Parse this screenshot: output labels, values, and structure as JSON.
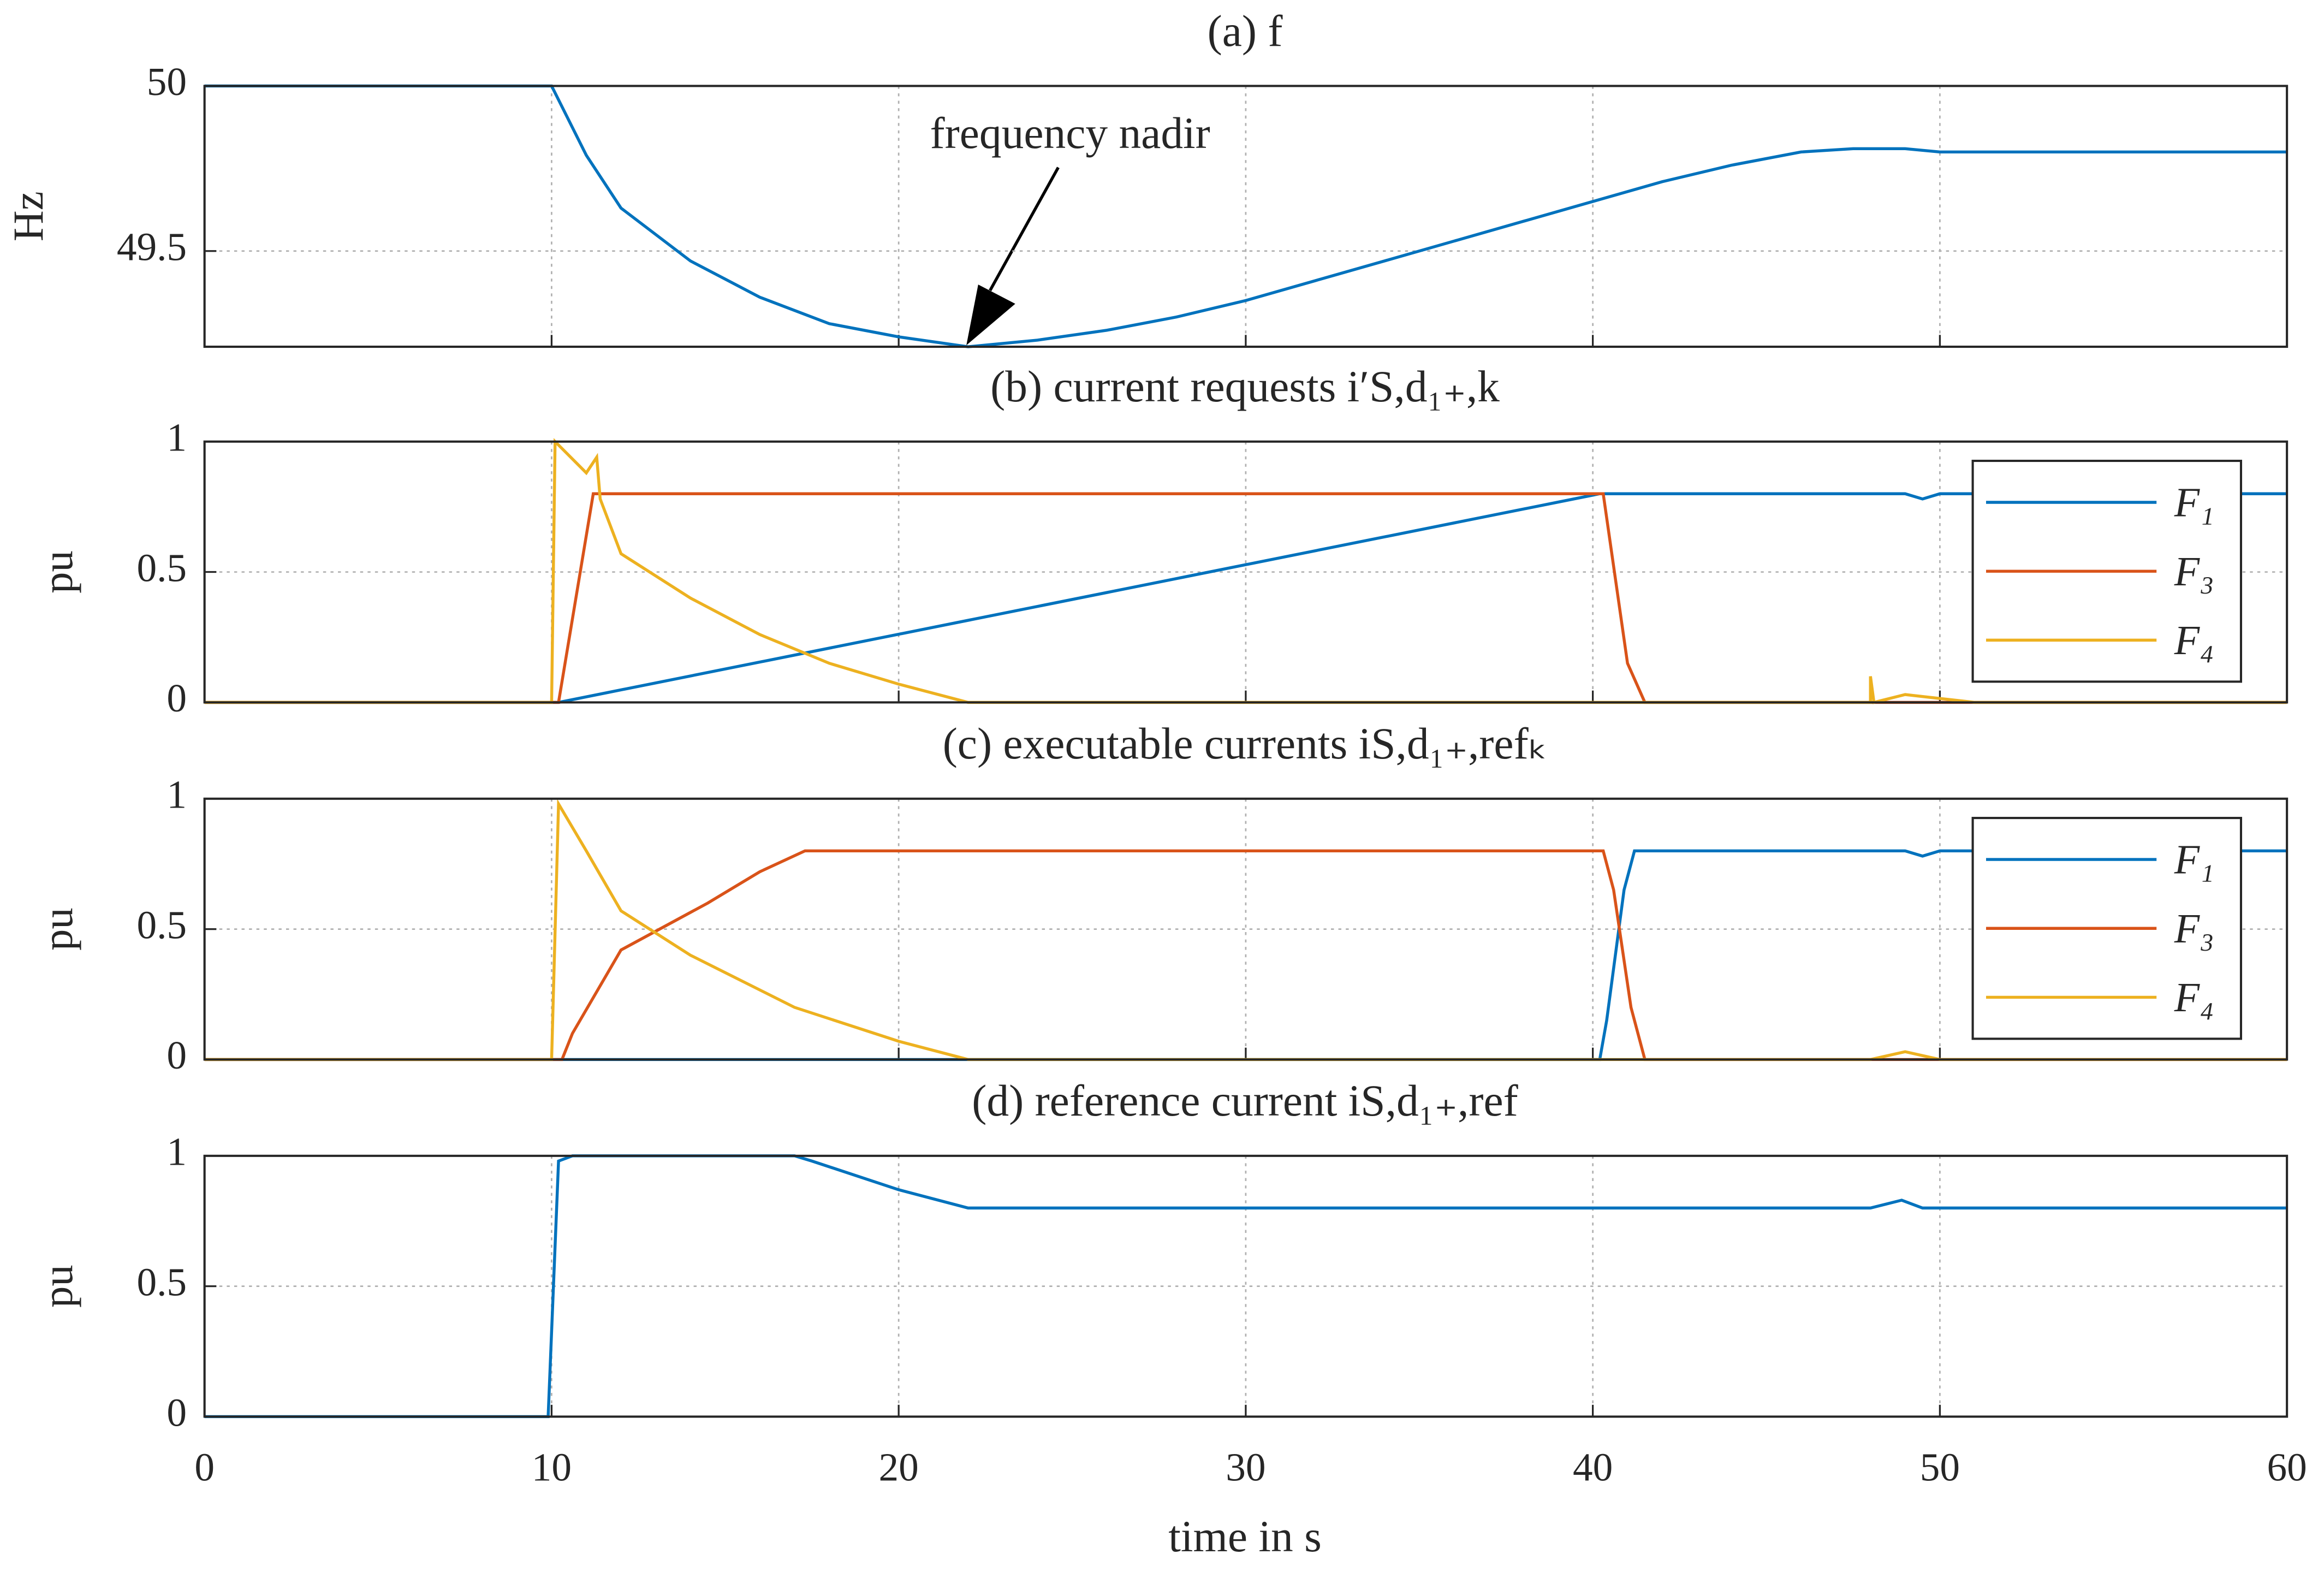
{
  "chart_data": [
    {
      "type": "line",
      "title": "(a) f",
      "ylabel": "Hz",
      "ylim": [
        49.21,
        50
      ],
      "yticks": [
        49.5,
        50
      ],
      "grid": true,
      "annotation": "frequency nadir",
      "series": [
        {
          "name": "f",
          "color": "#0072BD",
          "x": [
            0,
            10,
            11,
            12,
            14,
            16,
            18,
            20,
            22,
            24,
            26,
            28,
            30,
            32,
            34,
            36,
            38,
            40,
            42,
            44,
            46,
            47.5,
            49,
            50,
            60
          ],
          "values": [
            50,
            50,
            49.79,
            49.63,
            49.47,
            49.36,
            49.28,
            49.24,
            49.21,
            49.23,
            49.26,
            49.3,
            49.35,
            49.41,
            49.47,
            49.53,
            49.59,
            49.65,
            49.71,
            49.76,
            49.8,
            49.81,
            49.81,
            49.8,
            49.8
          ]
        }
      ]
    },
    {
      "type": "line",
      "title": "(b) current requests i′S,d₁₊,k",
      "ylabel": "pu",
      "ylim": [
        0,
        1
      ],
      "yticks": [
        0,
        0.5,
        1
      ],
      "grid": true,
      "legend": "upper right",
      "series": [
        {
          "name": "F₁",
          "color": "#0072BD",
          "x": [
            0,
            10.2,
            40.2,
            49,
            49.5,
            50,
            60
          ],
          "values": [
            0,
            0,
            0.8,
            0.8,
            0.78,
            0.8,
            0.8
          ]
        },
        {
          "name": "F₃",
          "color": "#D95319",
          "x": [
            0,
            10.2,
            11.2,
            40.3,
            41,
            41.5,
            60
          ],
          "values": [
            0,
            0,
            0.8,
            0.8,
            0.15,
            0,
            0
          ]
        },
        {
          "name": "F₄",
          "color": "#EDB120",
          "x": [
            0,
            10,
            10.1,
            11,
            11.3,
            11.4,
            12,
            14,
            16,
            18,
            20,
            22,
            48,
            48,
            48.1,
            49,
            51,
            60
          ],
          "values": [
            0,
            0,
            1,
            0.88,
            0.94,
            0.78,
            0.57,
            0.4,
            0.26,
            0.15,
            0.07,
            0,
            0,
            0.1,
            0,
            0.03,
            0,
            0
          ]
        }
      ]
    },
    {
      "type": "line",
      "title": "(c) executable currents iS,d₁₊,refₖ",
      "ylabel": "pu",
      "ylim": [
        0,
        1
      ],
      "yticks": [
        0,
        0.5,
        1
      ],
      "grid": true,
      "legend": "upper right",
      "series": [
        {
          "name": "F₁",
          "color": "#0072BD",
          "x": [
            0,
            40.2,
            40.4,
            40.9,
            41.2,
            49,
            49.5,
            50,
            60
          ],
          "values": [
            0,
            0,
            0.15,
            0.65,
            0.8,
            0.8,
            0.78,
            0.8,
            0.8
          ]
        },
        {
          "name": "F₃",
          "color": "#D95319",
          "x": [
            0,
            10.3,
            10.6,
            12,
            14.5,
            16,
            17.3,
            40.3,
            40.6,
            41.1,
            41.5,
            60
          ],
          "values": [
            0,
            0,
            0.1,
            0.42,
            0.6,
            0.72,
            0.8,
            0.8,
            0.65,
            0.2,
            0,
            0
          ]
        },
        {
          "name": "F₄",
          "color": "#EDB120",
          "x": [
            0,
            10,
            10.2,
            11,
            12,
            14,
            17,
            20,
            22,
            48,
            49,
            50,
            60
          ],
          "values": [
            0,
            0,
            0.98,
            0.8,
            0.57,
            0.4,
            0.2,
            0.07,
            0,
            0,
            0.03,
            0,
            0
          ]
        }
      ]
    },
    {
      "type": "line",
      "title": "(d) reference current iS,d₁₊,ref",
      "ylabel": "pu",
      "xlabel": "time in s",
      "xlim": [
        0,
        60
      ],
      "xticks": [
        0,
        10,
        20,
        30,
        40,
        50,
        60
      ],
      "ylim": [
        0,
        1
      ],
      "yticks": [
        0,
        0.5,
        1
      ],
      "grid": true,
      "series": [
        {
          "name": "iS,d₁₊,ref",
          "color": "#0072BD",
          "x": [
            0,
            9.9,
            10.2,
            10.6,
            17,
            17.5,
            20,
            22,
            48,
            48.9,
            49.5,
            60
          ],
          "values": [
            0,
            0,
            0.98,
            1,
            1,
            0.98,
            0.87,
            0.8,
            0.8,
            0.83,
            0.8,
            0.8
          ]
        }
      ]
    }
  ]
}
